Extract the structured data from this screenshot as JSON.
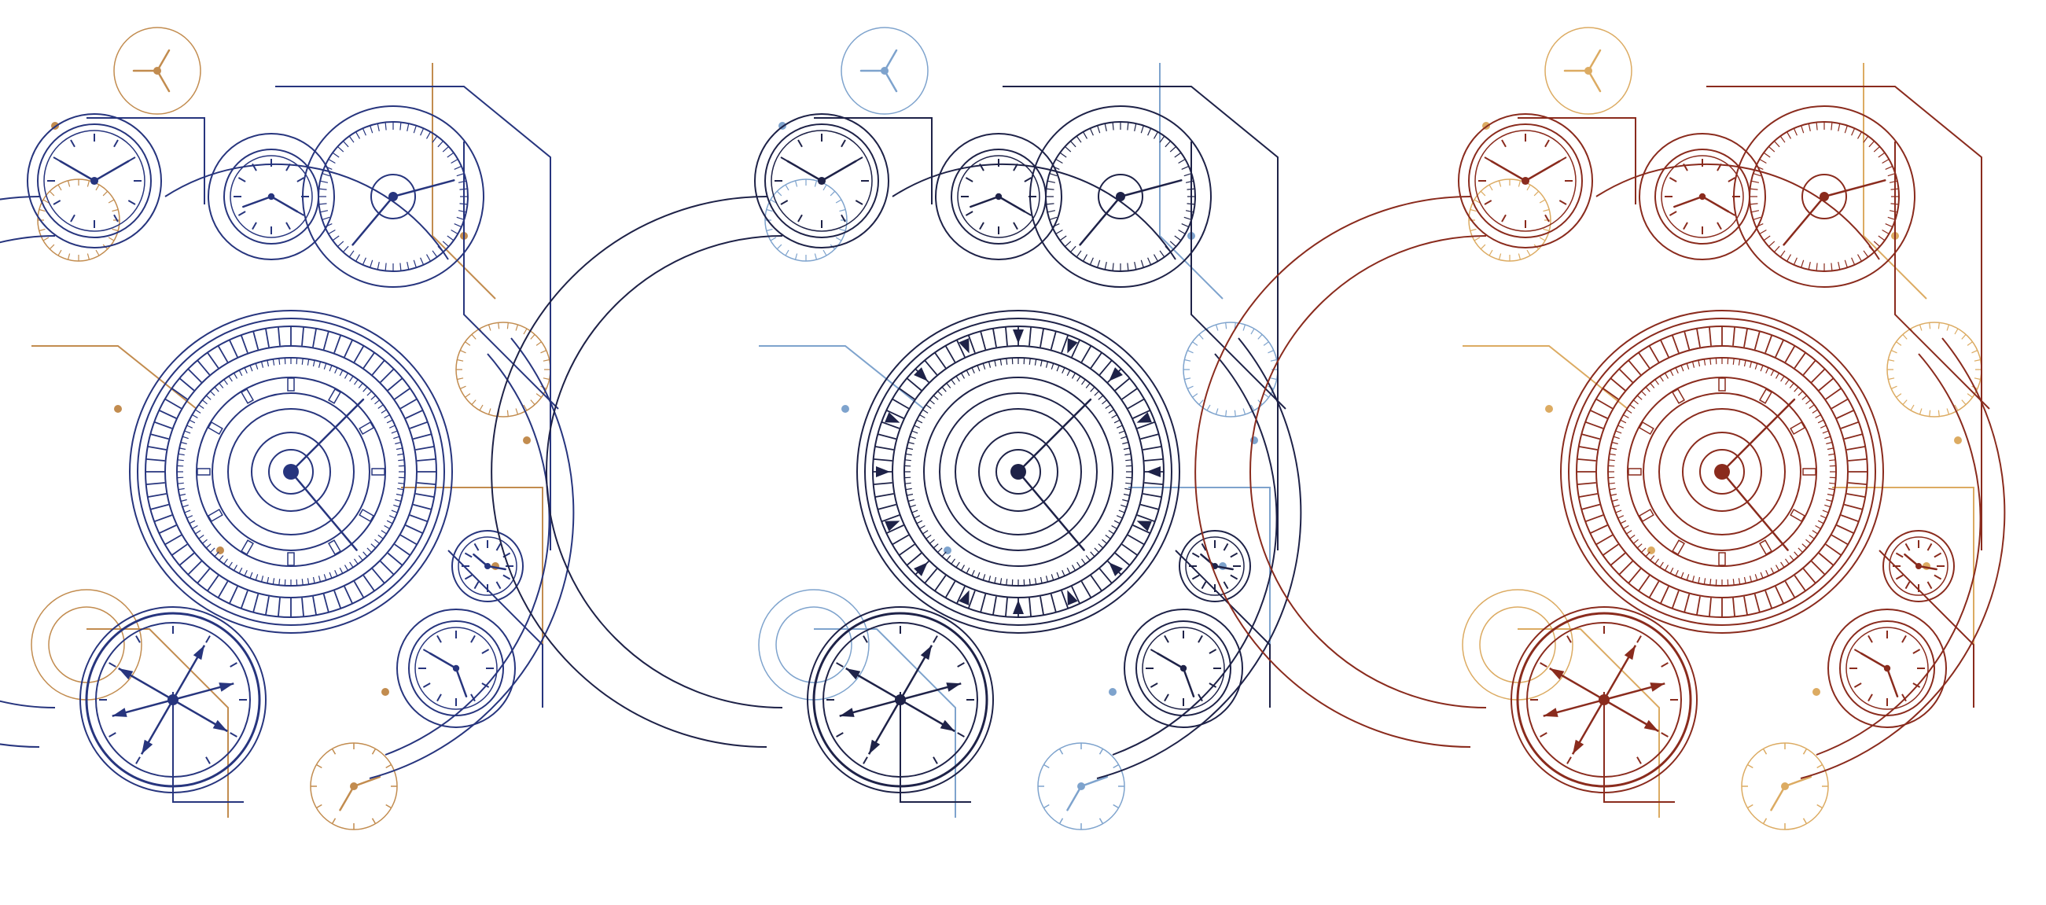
{
  "artwork": {
    "kind": "clockwork-mechanism-illustrations",
    "compositions": [
      {
        "id": "left",
        "primary_color": "#27357e",
        "accent_color": "#c28c4f"
      },
      {
        "id": "middle",
        "primary_color": "#1e2248",
        "accent_color": "#7ea3cd"
      },
      {
        "id": "right",
        "primary_color": "#8a2b1d",
        "accent_color": "#dcab62"
      }
    ]
  }
}
